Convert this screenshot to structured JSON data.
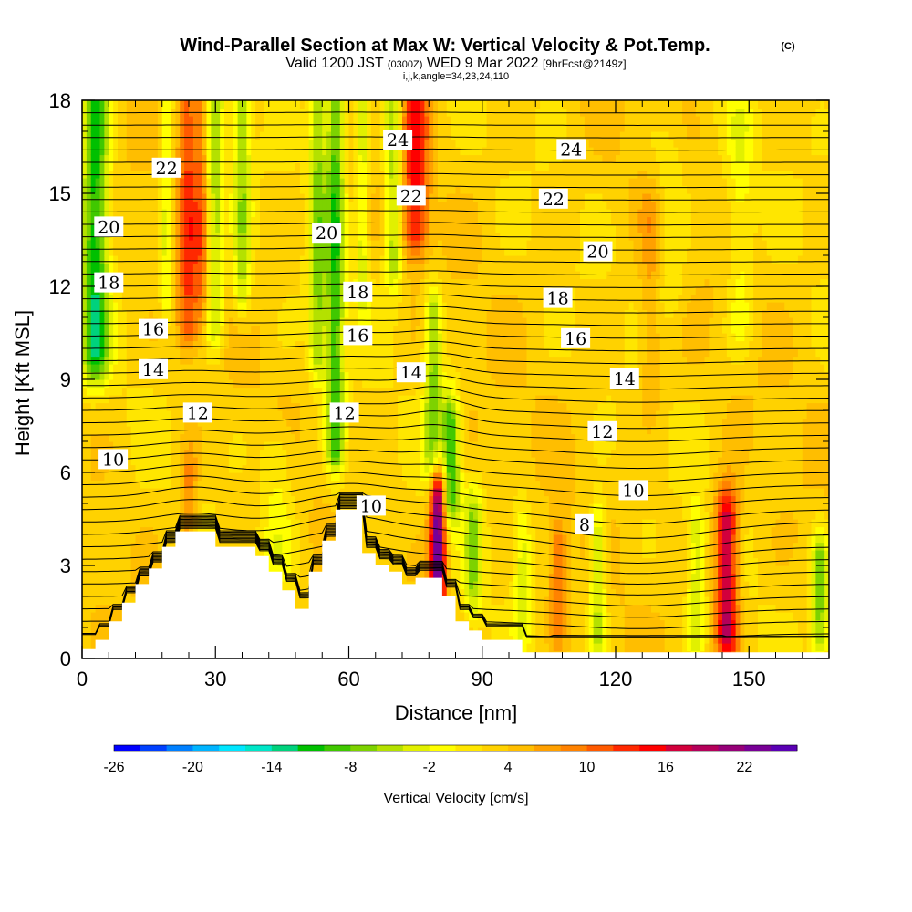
{
  "title": {
    "main": "Wind-Parallel Section at Max W: Vertical Velocity & Pot.Temp.",
    "copyright": "(C)",
    "valid_prefix": "Valid 1200 JST",
    "valid_z": "(0300Z)",
    "valid_date": "WED 9 Mar 2022",
    "fcst": "[9hrFcst@2149z]",
    "indices": "i,j,k,angle=34,23,24,110"
  },
  "chart_data": {
    "type": "heatmap",
    "xlabel": "Distance [nm]",
    "ylabel": "Height [Kft MSL]",
    "xlim": [
      0,
      168
    ],
    "ylim": [
      0,
      18
    ],
    "x_ticks": [
      0,
      30,
      60,
      90,
      120,
      150
    ],
    "x_tick_labels": [
      "0",
      "30",
      "60",
      "90",
      "120",
      "150"
    ],
    "y_ticks": [
      0,
      3,
      6,
      9,
      12,
      15,
      18
    ],
    "y_tick_labels": [
      "0",
      "3",
      "6",
      "9",
      "12",
      "15",
      "18"
    ],
    "colorbar": {
      "label": "Vertical Velocity [cm/s]",
      "tick_labels": [
        "-26",
        "-20",
        "-14",
        "-8",
        "-2",
        "4",
        "10",
        "16",
        "22"
      ],
      "colors": [
        "#0000ff",
        "#0040ff",
        "#0080ff",
        "#00b4ff",
        "#00e6ff",
        "#00e6c8",
        "#00d27d",
        "#00c000",
        "#40c800",
        "#7dd200",
        "#b4e100",
        "#e1f000",
        "#ffff00",
        "#ffe600",
        "#ffd200",
        "#ffbe00",
        "#ffa000",
        "#ff8200",
        "#ff5a00",
        "#ff2800",
        "#ff0000",
        "#d2003c",
        "#b4005a",
        "#960078",
        "#780096",
        "#5a00b4"
      ]
    },
    "terrain_profile": {
      "distance_nm": [
        0,
        3,
        3,
        6,
        6,
        9,
        9,
        12,
        12,
        15,
        15,
        18,
        18,
        21,
        21,
        30,
        30,
        39,
        39,
        42,
        42,
        45,
        45,
        48,
        48,
        51,
        51,
        54,
        54,
        57,
        57,
        63,
        63,
        66,
        66,
        69,
        69,
        72,
        72,
        75,
        75,
        81,
        81,
        84,
        84,
        87,
        87,
        90,
        90,
        99,
        99,
        168
      ],
      "height_kft": [
        0.3,
        0.3,
        0.6,
        0.6,
        1.2,
        1.2,
        1.8,
        1.8,
        2.4,
        2.4,
        2.9,
        2.9,
        3.6,
        3.6,
        4.1,
        4.1,
        3.6,
        3.6,
        3.3,
        3.3,
        2.8,
        2.8,
        2.2,
        2.2,
        1.6,
        1.6,
        2.8,
        2.8,
        3.8,
        3.8,
        4.8,
        4.8,
        3.4,
        3.4,
        3.0,
        3.0,
        2.8,
        2.8,
        2.4,
        2.4,
        2.6,
        2.6,
        2.0,
        2.0,
        1.2,
        1.2,
        0.9,
        0.9,
        0.6,
        0.6,
        0.2,
        0.2
      ]
    },
    "vertical_velocity_features": [
      {
        "x": 3,
        "ybot": 10,
        "ytop": 18,
        "w": 3,
        "value": -14
      },
      {
        "x": 19,
        "ybot": 12,
        "ytop": 18,
        "w": 1.5,
        "value": -6
      },
      {
        "x": 24,
        "ybot": 11,
        "ytop": 18,
        "w": 2.5,
        "value": 9
      },
      {
        "x": 27,
        "ybot": 12,
        "ytop": 18,
        "w": 1.2,
        "value": 5
      },
      {
        "x": 30,
        "ybot": 11,
        "ytop": 18,
        "w": 2,
        "value": -8
      },
      {
        "x": 36,
        "ybot": 12,
        "ytop": 18,
        "w": 2,
        "value": -8
      },
      {
        "x": 53,
        "ybot": 10,
        "ytop": 18,
        "w": 2,
        "value": -9
      },
      {
        "x": 57,
        "ybot": 7,
        "ytop": 18,
        "w": 2,
        "value": -12
      },
      {
        "x": 63,
        "ybot": 12,
        "ytop": 18,
        "w": 1.5,
        "value": -6
      },
      {
        "x": 70,
        "ybot": 13,
        "ytop": 18,
        "w": 2,
        "value": -9
      },
      {
        "x": 75,
        "ybot": 14,
        "ytop": 18,
        "w": 3,
        "value": 11
      },
      {
        "x": 79,
        "ybot": 6.5,
        "ytop": 11,
        "w": 2,
        "value": -10
      },
      {
        "x": 83,
        "ybot": 5.5,
        "ytop": 7.5,
        "w": 2,
        "value": -13
      },
      {
        "x": 80,
        "ybot": 2.5,
        "ytop": 5.2,
        "w": 1.8,
        "value": 22
      },
      {
        "x": 88,
        "ybot": 2.5,
        "ytop": 4.5,
        "w": 2,
        "value": -8
      },
      {
        "x": 99,
        "ybot": 1.5,
        "ytop": 4,
        "w": 2,
        "value": -6
      },
      {
        "x": 107,
        "ybot": 1.5,
        "ytop": 3.5,
        "w": 2,
        "value": 7
      },
      {
        "x": 116,
        "ybot": 1,
        "ytop": 4,
        "w": 2,
        "value": -8
      },
      {
        "x": 138,
        "ybot": 1,
        "ytop": 4,
        "w": 2,
        "value": -6
      },
      {
        "x": 145,
        "ybot": 1,
        "ytop": 4.5,
        "w": 2.5,
        "value": 16
      },
      {
        "x": 166,
        "ybot": 1,
        "ytop": 3,
        "w": 2,
        "value": -10
      },
      {
        "x": 128,
        "ybot": 9,
        "ytop": 14,
        "w": 2.5,
        "value": 4
      },
      {
        "x": 132,
        "ybot": 12,
        "ytop": 16,
        "w": 4,
        "value": -3
      },
      {
        "x": 148,
        "ybot": 11,
        "ytop": 17,
        "w": 3,
        "value": -4
      },
      {
        "x": 44,
        "ybot": 3.5,
        "ytop": 6.5,
        "w": 4,
        "value": -4
      },
      {
        "x": 24,
        "ybot": 4.5,
        "ytop": 5.8,
        "w": 2,
        "value": 6
      }
    ],
    "pot_temp_contours": {
      "min": 2.0,
      "max": 24.4,
      "interval": 0.5,
      "labeled_levels": [
        {
          "value": 24,
          "label": "24",
          "x": 71,
          "y": 16.7
        },
        {
          "value": 24,
          "label": "24",
          "x": 110,
          "y": 16.4
        },
        {
          "value": 22,
          "label": "22",
          "x": 19,
          "y": 15.8
        },
        {
          "value": 22,
          "label": "22",
          "x": 74,
          "y": 14.9
        },
        {
          "value": 22,
          "label": "22",
          "x": 106,
          "y": 14.8
        },
        {
          "value": 20,
          "label": "20",
          "x": 6,
          "y": 13.9
        },
        {
          "value": 20,
          "label": "20",
          "x": 55,
          "y": 13.7
        },
        {
          "value": 20,
          "label": "20",
          "x": 116,
          "y": 13.1
        },
        {
          "value": 18,
          "label": "18",
          "x": 6,
          "y": 12.1
        },
        {
          "value": 18,
          "label": "18",
          "x": 62,
          "y": 11.8
        },
        {
          "value": 18,
          "label": "18",
          "x": 107,
          "y": 11.6
        },
        {
          "value": 16,
          "label": "16",
          "x": 16,
          "y": 10.6
        },
        {
          "value": 16,
          "label": "16",
          "x": 62,
          "y": 10.4
        },
        {
          "value": 16,
          "label": "16",
          "x": 111,
          "y": 10.3
        },
        {
          "value": 14,
          "label": "14",
          "x": 16,
          "y": 9.3
        },
        {
          "value": 14,
          "label": "14",
          "x": 74,
          "y": 9.2
        },
        {
          "value": 14,
          "label": "14",
          "x": 122,
          "y": 9.0
        },
        {
          "value": 12,
          "label": "12",
          "x": 26,
          "y": 7.9
        },
        {
          "value": 12,
          "label": "12",
          "x": 59,
          "y": 7.9
        },
        {
          "value": 12,
          "label": "12",
          "x": 117,
          "y": 7.3
        },
        {
          "value": 10,
          "label": "10",
          "x": 7,
          "y": 6.4
        },
        {
          "value": 10,
          "label": "10",
          "x": 65,
          "y": 4.9
        },
        {
          "value": 10,
          "label": "10",
          "x": 124,
          "y": 5.4
        },
        {
          "value": 8,
          "label": "8",
          "x": 113,
          "y": 4.3
        }
      ]
    }
  }
}
